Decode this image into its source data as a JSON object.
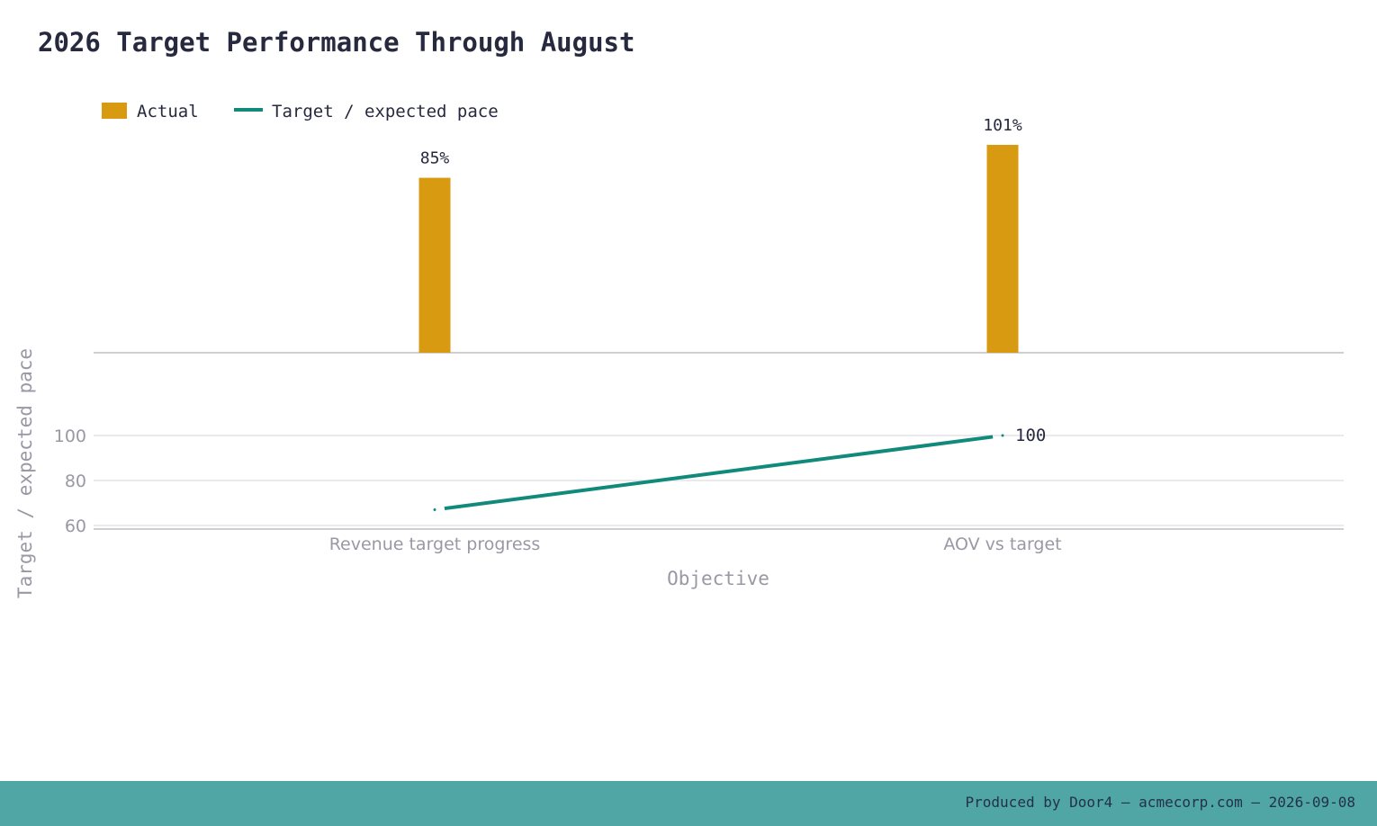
{
  "title": "2026 Target Performance Through August",
  "colors": {
    "bar": "#d89a10",
    "line": "#118a7b",
    "title": "#272a3e",
    "axis_text": "#9a98a4",
    "footer_bg": "#4fa6a5"
  },
  "footer": {
    "text": "Produced by Door4 — acmecorp.com — 2026-09-08"
  },
  "chart_data": {
    "type": "bar+line",
    "categories": [
      "Revenue target progress",
      "AOV vs target"
    ],
    "series": [
      {
        "name": "Actual",
        "type": "bar",
        "values": [
          85,
          101
        ],
        "labels": [
          "85%",
          "101%"
        ]
      },
      {
        "name": "Target / expected pace",
        "type": "line",
        "values": [
          67,
          100
        ],
        "labels": [
          "",
          "100"
        ]
      }
    ],
    "xlabel": "Objective",
    "ylabel": "Target / expected pace",
    "lower_panel": {
      "yticks": [
        60,
        80,
        100
      ],
      "ylim": [
        59,
        110
      ]
    },
    "upper_panel": {
      "ylim": [
        0,
        101
      ]
    },
    "legend_position": "top-left",
    "grid": true
  }
}
